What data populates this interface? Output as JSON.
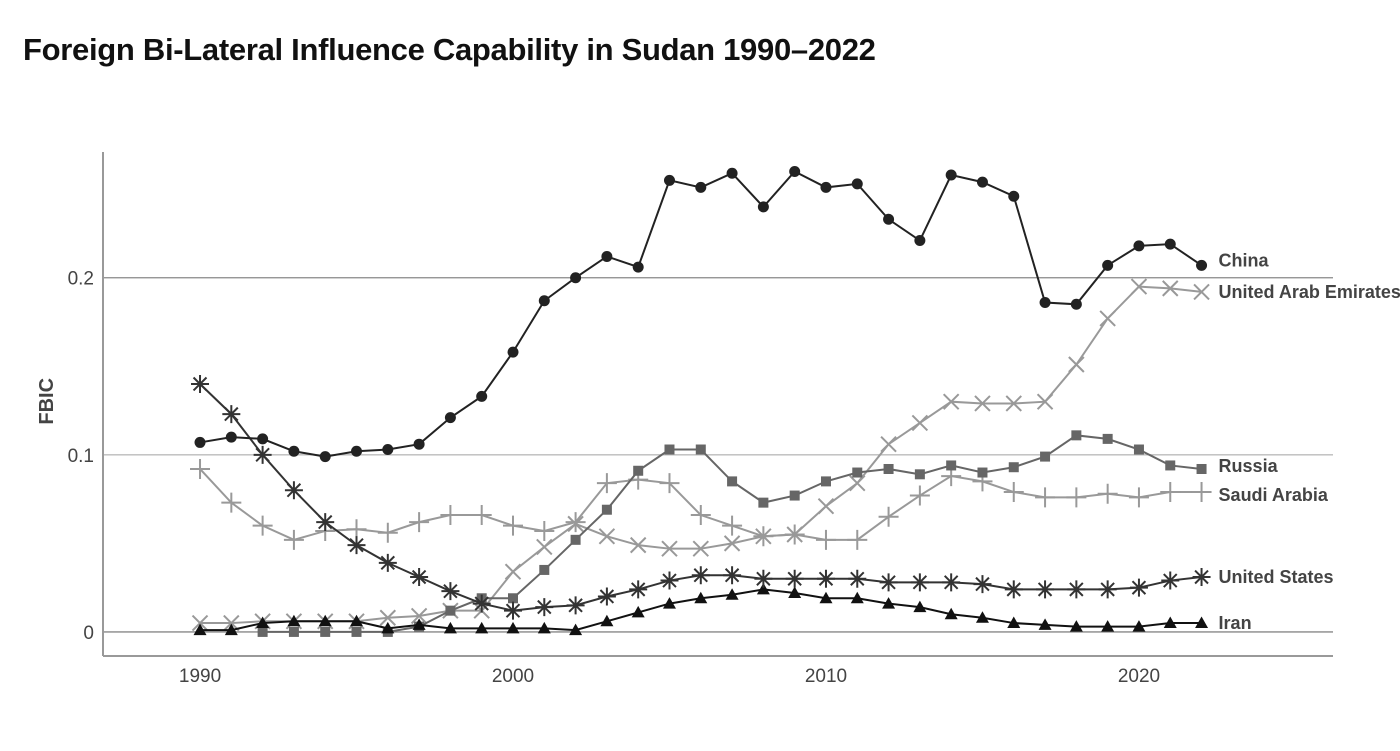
{
  "chart_data": {
    "type": "line",
    "title": "Foreign Bi-Lateral Influence Capability in Sudan 1990–2022",
    "xlabel": "",
    "ylabel": "FBIC",
    "xlim": [
      1986.9,
      2026.2
    ],
    "ylim": [
      -0.0136,
      0.271
    ],
    "x_ticks": [
      1990,
      2000,
      2010,
      2020
    ],
    "x_tick_labels": [
      "1990",
      "2000",
      "2010",
      "2020"
    ],
    "y_ticks": [
      0,
      0.1,
      0.2
    ],
    "y_tick_labels": [
      "0",
      "0.1",
      "0.2"
    ],
    "grid": "horizontal at y ticks",
    "legend": "direct labels at right end of lines",
    "series": [
      {
        "name": "China",
        "marker": "circle",
        "color": "#222222",
        "start_year": 1990,
        "values": [
          0.107,
          0.11,
          0.109,
          0.102,
          0.099,
          0.102,
          0.103,
          0.106,
          0.121,
          0.133,
          0.158,
          0.187,
          0.2,
          0.212,
          0.206,
          0.255,
          0.251,
          0.259,
          0.24,
          0.26,
          0.251,
          0.253,
          0.233,
          0.221,
          0.258,
          0.254,
          0.246,
          0.186,
          0.185,
          0.207,
          0.218,
          0.219,
          0.207
        ]
      },
      {
        "name": "United Arab Emirates",
        "marker": "x",
        "color": "#999999",
        "start_year": 1990,
        "values": [
          0.005,
          0.005,
          0.006,
          0.006,
          0.006,
          0.006,
          0.008,
          0.009,
          0.012,
          0.012,
          0.034,
          0.048,
          0.061,
          0.054,
          0.049,
          0.047,
          0.047,
          0.05,
          0.054,
          0.055,
          0.071,
          0.084,
          0.106,
          0.118,
          0.13,
          0.129,
          0.129,
          0.13,
          0.151,
          0.177,
          0.195,
          0.194,
          0.192
        ]
      },
      {
        "name": "Russia",
        "marker": "square",
        "color": "#666666",
        "start_year": 1992,
        "values": [
          0.0,
          0.0,
          0.0,
          0.0,
          0.0,
          0.003,
          0.012,
          0.019,
          0.019,
          0.035,
          0.052,
          0.069,
          0.091,
          0.103,
          0.103,
          0.085,
          0.073,
          0.077,
          0.085,
          0.09,
          0.092,
          0.089,
          0.094,
          0.09,
          0.093,
          0.099,
          0.111,
          0.109,
          0.103,
          0.094,
          0.092
        ]
      },
      {
        "name": "Saudi Arabia",
        "marker": "plus",
        "color": "#999999",
        "start_year": 1990,
        "values": [
          0.092,
          0.073,
          0.06,
          0.052,
          0.057,
          0.058,
          0.056,
          0.062,
          0.066,
          0.066,
          0.06,
          0.057,
          0.062,
          0.084,
          0.086,
          0.084,
          0.066,
          0.06,
          0.054,
          0.055,
          0.052,
          0.052,
          0.065,
          0.077,
          0.088,
          0.085,
          0.079,
          0.076,
          0.076,
          0.078,
          0.076,
          0.079,
          0.079
        ]
      },
      {
        "name": "United States",
        "marker": "asterisk",
        "color": "#333333",
        "start_year": 1990,
        "values": [
          0.14,
          0.123,
          0.1,
          0.08,
          0.062,
          0.049,
          0.039,
          0.031,
          0.023,
          0.016,
          0.012,
          0.014,
          0.015,
          0.02,
          0.024,
          0.029,
          0.032,
          0.032,
          0.03,
          0.03,
          0.03,
          0.03,
          0.028,
          0.028,
          0.028,
          0.027,
          0.024,
          0.024,
          0.024,
          0.024,
          0.025,
          0.029,
          0.031
        ]
      },
      {
        "name": "Iran",
        "marker": "triangle",
        "color": "#111111",
        "start_year": 1990,
        "values": [
          0.001,
          0.001,
          0.005,
          0.006,
          0.006,
          0.006,
          0.002,
          0.004,
          0.002,
          0.002,
          0.002,
          0.002,
          0.001,
          0.006,
          0.011,
          0.016,
          0.019,
          0.021,
          0.024,
          0.022,
          0.019,
          0.019,
          0.016,
          0.014,
          0.01,
          0.008,
          0.005,
          0.004,
          0.003,
          0.003,
          0.003,
          0.005,
          0.005
        ]
      }
    ]
  }
}
